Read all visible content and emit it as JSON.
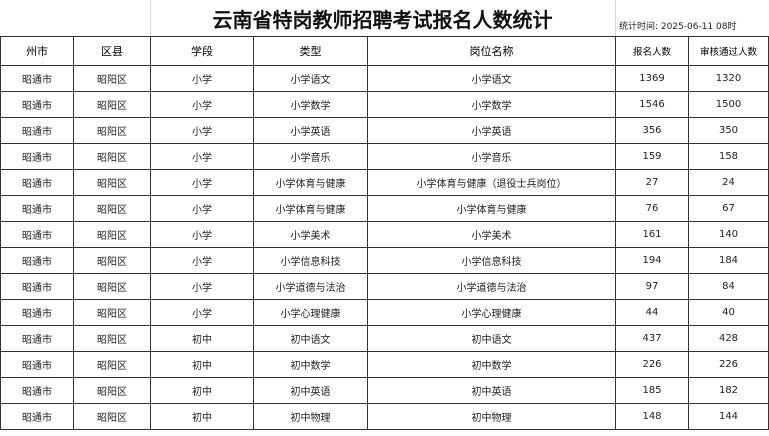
{
  "header": {
    "title": "云南省特岗教师招聘考试报名人数统计",
    "timestamp": "统计时间: 2025-06-11 08时"
  },
  "table": {
    "columns": [
      "州市",
      "区县",
      "学段",
      "类型",
      "岗位名称",
      "报名人数",
      "审核通过人数"
    ],
    "rows": [
      [
        "昭通市",
        "昭阳区",
        "小学",
        "小学语文",
        "小学语文",
        "1369",
        "1320"
      ],
      [
        "昭通市",
        "昭阳区",
        "小学",
        "小学数学",
        "小学数学",
        "1546",
        "1500"
      ],
      [
        "昭通市",
        "昭阳区",
        "小学",
        "小学英语",
        "小学英语",
        "356",
        "350"
      ],
      [
        "昭通市",
        "昭阳区",
        "小学",
        "小学音乐",
        "小学音乐",
        "159",
        "158"
      ],
      [
        "昭通市",
        "昭阳区",
        "小学",
        "小学体育与健康",
        "小学体育与健康（退役士兵岗位）",
        "27",
        "24"
      ],
      [
        "昭通市",
        "昭阳区",
        "小学",
        "小学体育与健康",
        "小学体育与健康",
        "76",
        "67"
      ],
      [
        "昭通市",
        "昭阳区",
        "小学",
        "小学美术",
        "小学美术",
        "161",
        "140"
      ],
      [
        "昭通市",
        "昭阳区",
        "小学",
        "小学信息科技",
        "小学信息科技",
        "194",
        "184"
      ],
      [
        "昭通市",
        "昭阳区",
        "小学",
        "小学道德与法治",
        "小学道德与法治",
        "97",
        "84"
      ],
      [
        "昭通市",
        "昭阳区",
        "小学",
        "小学心理健康",
        "小学心理健康",
        "44",
        "40"
      ],
      [
        "昭通市",
        "昭阳区",
        "初中",
        "初中语文",
        "初中语文",
        "437",
        "428"
      ],
      [
        "昭通市",
        "昭阳区",
        "初中",
        "初中数学",
        "初中数学",
        "226",
        "226"
      ],
      [
        "昭通市",
        "昭阳区",
        "初中",
        "初中英语",
        "初中英语",
        "185",
        "182"
      ],
      [
        "昭通市",
        "昭阳区",
        "初中",
        "初中物理",
        "初中物理",
        "148",
        "144"
      ]
    ]
  }
}
